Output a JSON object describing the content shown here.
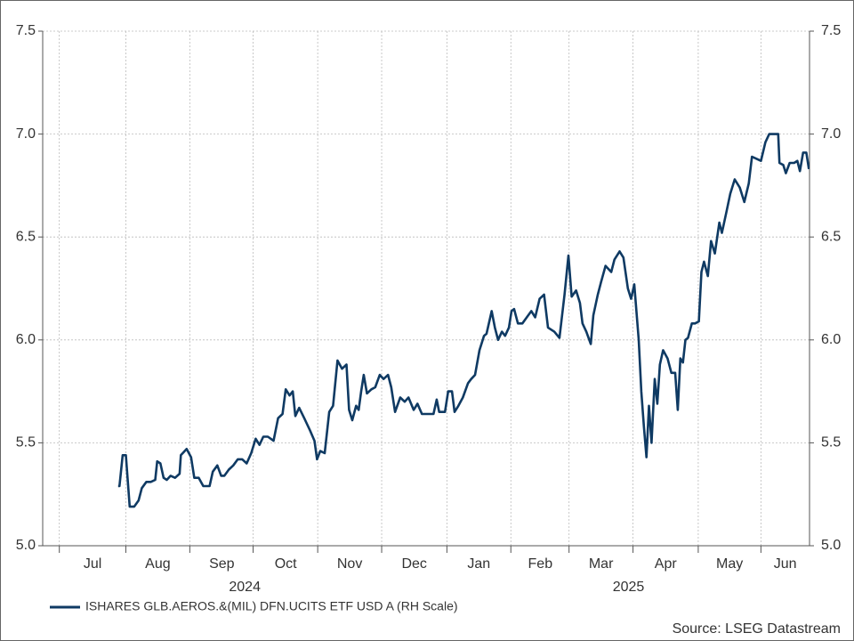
{
  "chart_data": {
    "type": "line",
    "x": [
      0.92,
      0.94,
      0.99,
      1.04,
      1.1,
      1.17,
      1.24,
      1.29,
      1.36,
      1.43,
      1.5,
      1.53,
      1.58,
      1.63,
      1.68,
      1.74,
      1.81,
      1.88,
      1.9,
      1.99,
      2.06,
      2.11,
      2.18,
      2.25,
      2.35,
      2.4,
      2.47,
      2.53,
      2.58,
      2.65,
      2.72,
      2.79,
      2.86,
      2.93,
      3.0,
      3.07,
      3.13,
      3.19,
      3.26,
      3.35,
      3.42,
      3.49,
      3.54,
      3.6,
      3.65,
      3.69,
      3.75,
      3.83,
      3.92,
      3.99,
      4.03,
      4.08,
      4.15,
      4.22,
      4.28,
      4.35,
      4.42,
      4.49,
      4.53,
      4.58,
      4.64,
      4.68,
      4.72,
      4.76,
      4.81,
      4.88,
      4.94,
      5.01,
      5.07,
      5.14,
      5.19,
      5.25,
      5.33,
      5.4,
      5.46,
      5.54,
      5.6,
      5.67,
      5.76,
      5.85,
      5.9,
      5.94,
      6.03,
      6.08,
      6.14,
      6.18,
      6.24,
      6.31,
      6.39,
      6.44,
      6.5,
      6.57,
      6.64,
      6.68,
      6.76,
      6.81,
      6.86,
      6.92,
      6.97,
      7.03,
      7.07,
      7.11,
      7.17,
      7.24,
      7.31,
      7.38,
      7.44,
      7.51,
      7.58,
      7.64,
      7.74,
      7.82,
      7.9,
      7.96,
      8.01,
      8.08,
      8.14,
      8.18,
      8.24,
      8.31,
      8.35,
      8.42,
      8.47,
      8.54,
      8.63,
      8.68,
      8.76,
      8.82,
      8.89,
      8.94,
      8.99,
      9.06,
      9.1,
      9.14,
      9.18,
      9.22,
      9.26,
      9.31,
      9.35,
      9.39,
      9.44,
      9.51,
      9.57,
      9.63,
      9.67,
      9.71,
      9.75,
      9.79,
      9.83,
      9.89,
      9.94,
      10.0,
      10.04,
      10.08,
      10.14,
      10.19,
      10.25,
      10.32,
      10.36,
      10.43,
      10.49,
      10.56,
      10.64,
      10.71,
      10.78,
      10.83,
      10.9,
      10.97,
      11.04,
      11.1,
      11.17,
      11.24,
      11.26,
      11.32,
      11.36,
      11.42,
      11.49,
      11.54,
      11.58,
      11.63,
      11.68,
      11.72
    ],
    "series": [
      {
        "name": "ISHARES GLB.AEROS.&(MIL) DFN.UCITS ETF USD A (RH Scale)",
        "color": "#0f3a63",
        "axis": "y2",
        "values": [
          5.29,
          5.29,
          5.44,
          5.44,
          5.19,
          5.19,
          5.22,
          5.28,
          5.31,
          5.31,
          5.32,
          5.41,
          5.4,
          5.33,
          5.32,
          5.34,
          5.33,
          5.35,
          5.44,
          5.47,
          5.43,
          5.33,
          5.33,
          5.29,
          5.29,
          5.36,
          5.39,
          5.34,
          5.34,
          5.37,
          5.39,
          5.42,
          5.42,
          5.4,
          5.45,
          5.52,
          5.49,
          5.53,
          5.53,
          5.51,
          5.62,
          5.64,
          5.76,
          5.73,
          5.75,
          5.63,
          5.67,
          5.62,
          5.56,
          5.51,
          5.42,
          5.46,
          5.45,
          5.65,
          5.68,
          5.9,
          5.86,
          5.88,
          5.66,
          5.61,
          5.68,
          5.66,
          5.75,
          5.83,
          5.74,
          5.76,
          5.77,
          5.83,
          5.81,
          5.83,
          5.77,
          5.65,
          5.72,
          5.7,
          5.72,
          5.66,
          5.69,
          5.64,
          5.64,
          5.64,
          5.71,
          5.65,
          5.65,
          5.75,
          5.75,
          5.65,
          5.68,
          5.72,
          5.79,
          5.81,
          5.83,
          5.95,
          6.02,
          6.03,
          6.14,
          6.06,
          6.0,
          6.04,
          6.02,
          6.06,
          6.14,
          6.15,
          6.08,
          6.08,
          6.11,
          6.14,
          6.11,
          6.2,
          6.22,
          6.06,
          6.04,
          6.01,
          6.22,
          6.41,
          6.21,
          6.24,
          6.18,
          6.08,
          6.04,
          5.98,
          6.12,
          6.22,
          6.28,
          6.36,
          6.33,
          6.39,
          6.43,
          6.4,
          6.25,
          6.2,
          6.27,
          6.0,
          5.75,
          5.58,
          5.43,
          5.68,
          5.5,
          5.81,
          5.69,
          5.88,
          5.95,
          5.91,
          5.84,
          5.84,
          5.66,
          5.91,
          5.89,
          6.0,
          6.01,
          6.08,
          6.08,
          6.09,
          6.33,
          6.38,
          6.31,
          6.48,
          6.42,
          6.57,
          6.52,
          6.62,
          6.71,
          6.78,
          6.74,
          6.67,
          6.76,
          6.89,
          6.88,
          6.87,
          6.96,
          7.0,
          7.0,
          7.0,
          6.86,
          6.85,
          6.81,
          6.86,
          6.86,
          6.87,
          6.82,
          6.91,
          6.91,
          6.83
        ]
      }
    ],
    "xlim": [
      -0.26,
      11.73
    ],
    "xticks": [
      {
        "value": 0.52,
        "label": "Jul"
      },
      {
        "value": 1.54,
        "label": "Aug"
      },
      {
        "value": 2.54,
        "label": "Sep"
      },
      {
        "value": 3.54,
        "label": "Oct"
      },
      {
        "value": 4.54,
        "label": "Nov"
      },
      {
        "value": 5.55,
        "label": "Dec"
      },
      {
        "value": 6.56,
        "label": "Jan"
      },
      {
        "value": 7.52,
        "label": "Feb"
      },
      {
        "value": 8.47,
        "label": "Mar"
      },
      {
        "value": 9.48,
        "label": "Apr"
      },
      {
        "value": 10.48,
        "label": "May"
      },
      {
        "value": 11.35,
        "label": "Jun"
      }
    ],
    "x_month_boundaries": [
      0,
      1.04,
      2.04,
      3.03,
      4.04,
      5.04,
      6.06,
      7.06,
      7.97,
      8.97,
      9.99,
      10.97
    ],
    "x_year_labels": [
      {
        "value": 2.9,
        "label": "2024"
      },
      {
        "value": 8.9,
        "label": "2025"
      }
    ],
    "ylim": [
      5,
      7.5
    ],
    "yticks": [
      {
        "value": 5,
        "label": "5.0"
      },
      {
        "value": 5.5,
        "label": "5.5"
      },
      {
        "value": 6,
        "label": "6.0"
      },
      {
        "value": 6.5,
        "label": "6.5"
      },
      {
        "value": 7,
        "label": "7.0"
      },
      {
        "value": 7.5,
        "label": "7.5"
      }
    ],
    "y2lim": [
      5,
      7.5
    ],
    "y2ticks": [
      {
        "value": 5,
        "label": "5.0"
      },
      {
        "value": 5.5,
        "label": "5.5"
      },
      {
        "value": 6,
        "label": "6.0"
      },
      {
        "value": 6.5,
        "label": "6.5"
      },
      {
        "value": 7,
        "label": "7.0"
      },
      {
        "value": 7.5,
        "label": "7.5"
      }
    ],
    "grid": true,
    "source": "Source: LSEG Datastream"
  }
}
